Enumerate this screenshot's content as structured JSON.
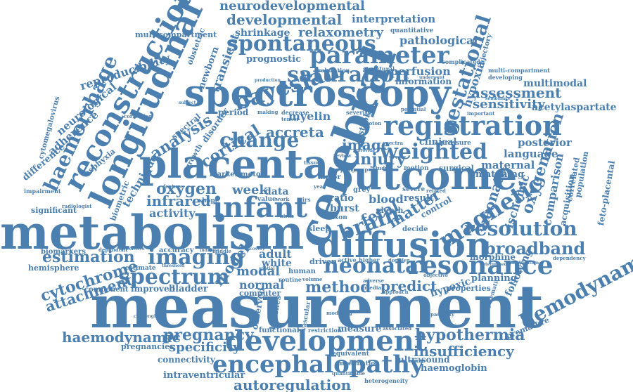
{
  "color": "#4a7fb0",
  "words": {
    "measurement": "measurement",
    "metabolism": "metabolism",
    "cerebral": "cerebral",
    "spectroscopy": "spectroscopy",
    "placenta": "placenta",
    "outcome": "outcome",
    "longitudinal": "longitudinal",
    "diffusion": "diffusion",
    "registration": "registration",
    "development": "development",
    "encephalopathy": "encephalopathy",
    "reconstruction": "reconstruction",
    "infant": "infant",
    "parameter": "parameter",
    "spontaneous": "spontaneous",
    "resonance": "resonance",
    "neonatal": "neonatal",
    "saturation": "saturation",
    "bayesian": "bayesian",
    "magnetic": "magnetic",
    "imaging": "imaging",
    "spectrum": "spectrum",
    "haemorrhage": "haemorrhage",
    "hemodynamic": "hemodynamic",
    "weighted": "weighted",
    "resolution": "resolution",
    "broadband": "broadband",
    "change": "change",
    "brain": "brain",
    "gestational": "gestational",
    "hypothermia": "hypothermia",
    "insufficiency": "insufficiency",
    "pregnancy": "pregnancy",
    "haemodynamic": "haemodynamic",
    "specificity": "specificity",
    "autoregulation": "autoregulation",
    "method": "method",
    "predict": "predict",
    "estimation": "estimation",
    "cytochrome": "cytochrome",
    "attachment": "attachment",
    "assessment": "assessment",
    "neurodevelopmental": "neurodevelopmental",
    "developmental": "developmental",
    "relaxometry": "relaxometry",
    "shrinkage": "shrinkage",
    "pathological": "pathological",
    "interpretation": "interpretation",
    "multicompartment": "multicompartment",
    "reproducibility": "reproducibility",
    "neurological": "neurological",
    "adherence": "adherence",
    "difference": "difference",
    "cytomegalovirus": "cytomegalovirus",
    "technique": "technique",
    "analysis": "analysis",
    "cortical": "cortical",
    "oxygen": "oxygen",
    "infrared": "infrared",
    "activity": "activity",
    "accreta": "accreta",
    "image": "image",
    "injury": "injury",
    "fetal": "fetal",
    "matter": "matter",
    "myelin": "myelin",
    "neonate": "neonate",
    "oxygenation": "oxygenation",
    "ischemic": "ischemic",
    "comparison": "comparison",
    "acquisition": "acquisition",
    "feto-placental": "feto-placental",
    "sensitivity": "sensitivity",
    "acetylaspartate": "acetylaspartate",
    "hypoxia": "hypoxia",
    "perfusion": "perfusion",
    "information": "information",
    "multimodal": "multimodal",
    "language": "language",
    "posterior": "posterior",
    "maternal": "maternal",
    "matching": "matching",
    "clinical": "clinical",
    "model": "model",
    "normal": "normal",
    "white": "white",
    "adult": "adult",
    "modal": "modal",
    "week": "week",
    "data": "data",
    "prognostic": "prognostic",
    "transient": "transient",
    "newborn": "newborn",
    "obstetric": "obstetric",
    "blood": "blood",
    "result": "result",
    "ratio": "ratio",
    "burst": "burst",
    "sleep": "sleep",
    "stroke": "stroke",
    "depth": "depth",
    "control": "control",
    "morphine": "morphine",
    "hypoxic": "hypoxic",
    "planning": "planning",
    "properties": "properties",
    "following": "following",
    "premature": "premature",
    "improved": "improved",
    "bladder": "bladder",
    "component": "component",
    "hemisphere": "hemisphere",
    "biomarkers": "biomarkers",
    "significant": "significant",
    "connectivity": "connectivity",
    "intraventricular": "intraventricular",
    "pregnancies": "pregnancies",
    "ultrasound": "ultrasound",
    "haemoglobin": "haemoglobin",
    "measure": "measure",
    "functional": "functional",
    "computer": "computer",
    "observed": "observed",
    "brushes": "brushes",
    "equivalent": "equivalent",
    "myelination": "myelination",
    "accuracy": "accuracy",
    "estimate": "estimate",
    "period": "period",
    "growth": "growth",
    "spectral": "spectral",
    "motor": "motor",
    "marker": "marker",
    "shape": "shape",
    "feature": "feature",
    "biometric": "biometric",
    "asphyxia": "asphyxia",
    "driven": "driven",
    "human": "human",
    "surgical": "surgical",
    "relaxation": "relaxation",
    "structural": "structural",
    "severe": "severe",
    "decide": "decide",
    "grey": "grey",
    "major": "major",
    "correlated": "correlated",
    "population": "population",
    "pressure": "pressure",
    "multi-compartment": "multi-compartment",
    "quantitative": "quantitative",
    "complicated": "complicated",
    "trajectory": "trajectory",
    "developing": "developing",
    "systematic": "systematic",
    "dependency": "dependency",
    "determined": "determined",
    "classification": "classification",
    "impairment": "impairment",
    "radiologist": "radiologist",
    "correction": "correction",
    "heterogeneity": "heterogeneity",
    "quantifiable": "quantifiable",
    "restriction": "restriction",
    "modeling": "modeling",
    "associated": "associated",
    "passivity": "passivity",
    "objective": "objective",
    "routine": "routine",
    "spatial": "spatial",
    "threshold": "threshold",
    "disorder": "disorder",
    "value": "value",
    "higher": "higher",
    "doppler": "doppler",
    "adverse": "adverse",
    "median": "median",
    "approach": "approach",
    "volume": "volume",
    "motion": "motion",
    "tissue": "tissue",
    "review": "review",
    "decrease": "decrease",
    "severity": "severity",
    "active": "active",
    "proton": "proton",
    "dependent": "dependent",
    "predictive": "predictive",
    "middle": "middle",
    "recovery": "recovery",
    "indicate": "indicate",
    "assisted": "assisted",
    "composition": "composition",
    "framework": "framework",
    "year": "year",
    "poor": "poor",
    "group": "group",
    "study": "study",
    "spectra": "spectra",
    "provide": "provide",
    "work": "work",
    "nirs": "nirs",
    "axon": "axon",
    "birth": "birth",
    "tensor": "tensor",
    "making": "making",
    "potential": "potential",
    "underwent": "underwent",
    "important": "important",
    "semblance": "semblance",
    "subject": "subject",
    "production": "production",
    "challenging": "challenging",
    "vascular": "vascular",
    "abnormal": "abnormal",
    "sample": "sample",
    "rate": "rate",
    "related": "related",
    "similar": "similar",
    "selection": "selection",
    "manual": "manual",
    "brain2": "brain",
    "combined": "combined",
    "baseline": "baseline"
  }
}
